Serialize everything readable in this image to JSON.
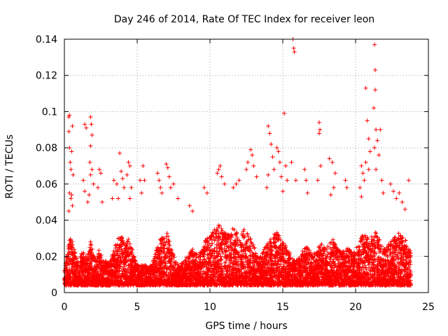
{
  "chart_data": {
    "type": "scatter",
    "title": "Day 246 of 2014, Rate Of TEC Index for receiver leon",
    "xlabel": "GPS time / hours",
    "ylabel": "ROTI / TECUs",
    "xlim": [
      0,
      25
    ],
    "ylim": [
      0,
      0.14
    ],
    "x_ticks": [
      0,
      5,
      10,
      15,
      20,
      25
    ],
    "x_tick_labels": [
      "0",
      "5",
      "10",
      "15",
      "20",
      "25"
    ],
    "y_ticks": [
      0,
      0.02,
      0.04,
      0.06,
      0.08,
      0.1,
      0.12,
      0.14
    ],
    "y_tick_labels": [
      "0",
      "0.02",
      "0.04",
      "0.06",
      "0.08",
      "0.1",
      "0.12",
      "0.14"
    ],
    "grid": true,
    "marker": "+",
    "series_color": "#ff0000",
    "series": [
      {
        "name": "ROTI",
        "points": [
          [
            0.3,
            0.097
          ],
          [
            0.35,
            0.098
          ],
          [
            0.3,
            0.089
          ],
          [
            0.55,
            0.092
          ],
          [
            0.5,
            0.078
          ],
          [
            0.35,
            0.08
          ],
          [
            0.4,
            0.072
          ],
          [
            0.45,
            0.068
          ],
          [
            0.6,
            0.065
          ],
          [
            0.35,
            0.055
          ],
          [
            0.5,
            0.054
          ],
          [
            0.45,
            0.052
          ],
          [
            0.55,
            0.048
          ],
          [
            0.3,
            0.045
          ],
          [
            1.4,
            0.093
          ],
          [
            1.5,
            0.091
          ],
          [
            1.3,
            0.062
          ],
          [
            1.4,
            0.056
          ],
          [
            1.6,
            0.05
          ],
          [
            1.8,
            0.097
          ],
          [
            1.85,
            0.093
          ],
          [
            1.9,
            0.087
          ],
          [
            1.8,
            0.081
          ],
          [
            1.75,
            0.072
          ],
          [
            1.9,
            0.068
          ],
          [
            1.8,
            0.065
          ],
          [
            2.0,
            0.06
          ],
          [
            1.7,
            0.054
          ],
          [
            2.4,
            0.068
          ],
          [
            2.5,
            0.066
          ],
          [
            2.3,
            0.058
          ],
          [
            2.6,
            0.05
          ],
          [
            3.4,
            0.062
          ],
          [
            3.6,
            0.06
          ],
          [
            3.3,
            0.052
          ],
          [
            3.8,
            0.077
          ],
          [
            3.9,
            0.067
          ],
          [
            4.0,
            0.063
          ],
          [
            4.1,
            0.058
          ],
          [
            3.7,
            0.052
          ],
          [
            4.4,
            0.072
          ],
          [
            4.5,
            0.07
          ],
          [
            4.3,
            0.065
          ],
          [
            4.6,
            0.058
          ],
          [
            4.5,
            0.052
          ],
          [
            5.2,
            0.062
          ],
          [
            5.4,
            0.07
          ],
          [
            5.5,
            0.062
          ],
          [
            5.3,
            0.055
          ],
          [
            6.4,
            0.066
          ],
          [
            6.5,
            0.062
          ],
          [
            6.6,
            0.058
          ],
          [
            6.7,
            0.055
          ],
          [
            7.0,
            0.071
          ],
          [
            7.1,
            0.069
          ],
          [
            7.2,
            0.064
          ],
          [
            7.3,
            0.058
          ],
          [
            7.5,
            0.06
          ],
          [
            7.8,
            0.052
          ],
          [
            8.6,
            0.048
          ],
          [
            8.8,
            0.045
          ],
          [
            9.6,
            0.058
          ],
          [
            9.8,
            0.055
          ],
          [
            10.5,
            0.066
          ],
          [
            10.6,
            0.068
          ],
          [
            10.7,
            0.07
          ],
          [
            10.8,
            0.064
          ],
          [
            11.0,
            0.06
          ],
          [
            11.6,
            0.058
          ],
          [
            11.8,
            0.06
          ],
          [
            12.0,
            0.062
          ],
          [
            12.5,
            0.068
          ],
          [
            12.6,
            0.072
          ],
          [
            12.8,
            0.079
          ],
          [
            12.9,
            0.076
          ],
          [
            13.0,
            0.07
          ],
          [
            13.2,
            0.064
          ],
          [
            14.0,
            0.092
          ],
          [
            14.1,
            0.088
          ],
          [
            14.2,
            0.082
          ],
          [
            14.3,
            0.075
          ],
          [
            14.0,
            0.065
          ],
          [
            14.4,
            0.068
          ],
          [
            13.9,
            0.058
          ],
          [
            14.6,
            0.08
          ],
          [
            14.7,
            0.078
          ],
          [
            14.8,
            0.072
          ],
          [
            14.9,
            0.064
          ],
          [
            15.1,
            0.099
          ],
          [
            15.2,
            0.07
          ],
          [
            15.3,
            0.062
          ],
          [
            15.0,
            0.056
          ],
          [
            15.7,
            0.14
          ],
          [
            15.75,
            0.135
          ],
          [
            15.8,
            0.133
          ],
          [
            15.6,
            0.072
          ],
          [
            15.9,
            0.062
          ],
          [
            16.5,
            0.068
          ],
          [
            16.6,
            0.062
          ],
          [
            16.7,
            0.055
          ],
          [
            17.5,
            0.094
          ],
          [
            17.55,
            0.09
          ],
          [
            17.5,
            0.088
          ],
          [
            17.6,
            0.07
          ],
          [
            17.4,
            0.062
          ],
          [
            18.2,
            0.074
          ],
          [
            18.4,
            0.072
          ],
          [
            18.6,
            0.066
          ],
          [
            18.5,
            0.058
          ],
          [
            18.3,
            0.054
          ],
          [
            19.3,
            0.062
          ],
          [
            19.4,
            0.058
          ],
          [
            20.4,
            0.07
          ],
          [
            20.5,
            0.066
          ],
          [
            20.6,
            0.062
          ],
          [
            20.3,
            0.058
          ],
          [
            20.4,
            0.053
          ],
          [
            20.7,
            0.113
          ],
          [
            20.8,
            0.095
          ],
          [
            20.9,
            0.085
          ],
          [
            21.0,
            0.078
          ],
          [
            20.7,
            0.072
          ],
          [
            20.9,
            0.068
          ],
          [
            21.3,
            0.137
          ],
          [
            21.35,
            0.123
          ],
          [
            21.35,
            0.112
          ],
          [
            21.25,
            0.102
          ],
          [
            21.4,
            0.09
          ],
          [
            21.5,
            0.084
          ],
          [
            21.3,
            0.08
          ],
          [
            21.6,
            0.076
          ],
          [
            21.4,
            0.068
          ],
          [
            21.7,
            0.09
          ],
          [
            21.8,
            0.062
          ],
          [
            21.9,
            0.055
          ],
          [
            22.4,
            0.06
          ],
          [
            22.6,
            0.056
          ],
          [
            22.8,
            0.052
          ],
          [
            23.0,
            0.055
          ],
          [
            23.2,
            0.05
          ],
          [
            23.4,
            0.046
          ],
          [
            23.65,
            0.062
          ]
        ],
        "band_points": [
          [
            0.0,
            0.012
          ],
          [
            0.2,
            0.024
          ],
          [
            0.4,
            0.03
          ],
          [
            0.6,
            0.028
          ],
          [
            0.8,
            0.02
          ],
          [
            1.0,
            0.018
          ],
          [
            1.2,
            0.022
          ],
          [
            1.4,
            0.024
          ],
          [
            1.6,
            0.02
          ],
          [
            1.8,
            0.03
          ],
          [
            2.0,
            0.022
          ],
          [
            2.2,
            0.018
          ],
          [
            2.4,
            0.025
          ],
          [
            2.6,
            0.02
          ],
          [
            2.8,
            0.018
          ],
          [
            3.0,
            0.016
          ],
          [
            3.2,
            0.02
          ],
          [
            3.4,
            0.025
          ],
          [
            3.6,
            0.028
          ],
          [
            3.8,
            0.032
          ],
          [
            4.0,
            0.03
          ],
          [
            4.2,
            0.026
          ],
          [
            4.4,
            0.03
          ],
          [
            4.6,
            0.028
          ],
          [
            4.8,
            0.02
          ],
          [
            5.0,
            0.016
          ],
          [
            5.2,
            0.014
          ],
          [
            5.4,
            0.016
          ],
          [
            5.6,
            0.015
          ],
          [
            5.8,
            0.014
          ],
          [
            6.0,
            0.016
          ],
          [
            6.2,
            0.02
          ],
          [
            6.4,
            0.026
          ],
          [
            6.6,
            0.03
          ],
          [
            6.8,
            0.032
          ],
          [
            7.0,
            0.034
          ],
          [
            7.2,
            0.03
          ],
          [
            7.4,
            0.024
          ],
          [
            7.6,
            0.018
          ],
          [
            7.8,
            0.016
          ],
          [
            8.0,
            0.016
          ],
          [
            8.2,
            0.018
          ],
          [
            8.4,
            0.02
          ],
          [
            8.6,
            0.022
          ],
          [
            8.8,
            0.024
          ],
          [
            9.0,
            0.022
          ],
          [
            9.2,
            0.02
          ],
          [
            9.4,
            0.024
          ],
          [
            9.6,
            0.028
          ],
          [
            9.8,
            0.03
          ],
          [
            10.0,
            0.032
          ],
          [
            10.2,
            0.034
          ],
          [
            10.4,
            0.036
          ],
          [
            10.6,
            0.038
          ],
          [
            10.8,
            0.036
          ],
          [
            11.0,
            0.034
          ],
          [
            11.2,
            0.032
          ],
          [
            11.4,
            0.034
          ],
          [
            11.6,
            0.036
          ],
          [
            11.8,
            0.034
          ],
          [
            12.0,
            0.032
          ],
          [
            12.2,
            0.034
          ],
          [
            12.4,
            0.036
          ],
          [
            12.6,
            0.034
          ],
          [
            12.8,
            0.03
          ],
          [
            13.0,
            0.026
          ],
          [
            13.2,
            0.022
          ],
          [
            13.4,
            0.02
          ],
          [
            13.6,
            0.022
          ],
          [
            13.8,
            0.026
          ],
          [
            14.0,
            0.028
          ],
          [
            14.2,
            0.03
          ],
          [
            14.4,
            0.032
          ],
          [
            14.6,
            0.034
          ],
          [
            14.8,
            0.03
          ],
          [
            15.0,
            0.028
          ],
          [
            15.2,
            0.026
          ],
          [
            15.4,
            0.024
          ],
          [
            15.6,
            0.02
          ],
          [
            15.8,
            0.018
          ],
          [
            16.0,
            0.018
          ],
          [
            16.2,
            0.02
          ],
          [
            16.4,
            0.024
          ],
          [
            16.6,
            0.026
          ],
          [
            16.8,
            0.024
          ],
          [
            17.0,
            0.022
          ],
          [
            17.2,
            0.024
          ],
          [
            17.4,
            0.026
          ],
          [
            17.6,
            0.028
          ],
          [
            17.8,
            0.026
          ],
          [
            18.0,
            0.024
          ],
          [
            18.2,
            0.028
          ],
          [
            18.4,
            0.03
          ],
          [
            18.6,
            0.028
          ],
          [
            18.8,
            0.026
          ],
          [
            19.0,
            0.022
          ],
          [
            19.2,
            0.024
          ],
          [
            19.4,
            0.026
          ],
          [
            19.6,
            0.024
          ],
          [
            19.8,
            0.022
          ],
          [
            20.0,
            0.024
          ],
          [
            20.2,
            0.028
          ],
          [
            20.4,
            0.032
          ],
          [
            20.6,
            0.034
          ],
          [
            20.8,
            0.032
          ],
          [
            21.0,
            0.03
          ],
          [
            21.2,
            0.032
          ],
          [
            21.4,
            0.034
          ],
          [
            21.6,
            0.03
          ],
          [
            21.8,
            0.026
          ],
          [
            22.0,
            0.024
          ],
          [
            22.2,
            0.026
          ],
          [
            22.4,
            0.028
          ],
          [
            22.6,
            0.03
          ],
          [
            22.8,
            0.032
          ],
          [
            23.0,
            0.034
          ],
          [
            23.2,
            0.032
          ],
          [
            23.4,
            0.03
          ],
          [
            23.6,
            0.026
          ],
          [
            23.8,
            0.022
          ]
        ]
      }
    ]
  }
}
